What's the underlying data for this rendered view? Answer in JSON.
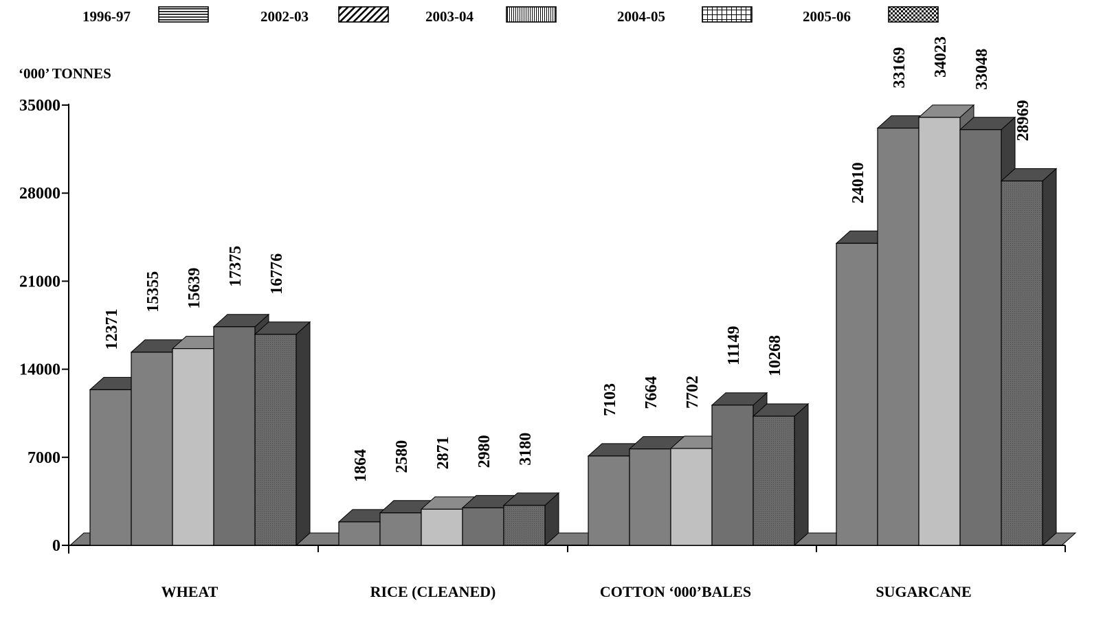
{
  "chart_data": {
    "type": "bar",
    "title": "",
    "ylabel": "‘000’ TONNES",
    "xlabel": "",
    "ylim": [
      0,
      35000
    ],
    "yticks": [
      0,
      7000,
      14000,
      21000,
      28000,
      35000
    ],
    "ytick_labels": [
      "0",
      "7000",
      "14000",
      "21000",
      "28000",
      "35000"
    ],
    "grid": false,
    "legend_position": "top",
    "style": "3d-clustered",
    "categories": [
      "WHEAT",
      "RICE (CLEANED)",
      "COTTON ‘000’BALES",
      "SUGARCANE"
    ],
    "series": [
      {
        "name": "1996-97",
        "values": [
          12371,
          1864,
          7103,
          24010
        ],
        "labels": [
          "12371",
          "1864",
          "7103",
          "24010"
        ],
        "pattern": "horizontal-lines",
        "color": "#808080"
      },
      {
        "name": "2002-03",
        "values": [
          15355,
          2580,
          7664,
          33169
        ],
        "labels": [
          "15355",
          "2580",
          "7664",
          "33169"
        ],
        "pattern": "diagonal-lines",
        "color": "#808080"
      },
      {
        "name": "2003-04",
        "values": [
          15639,
          2871,
          7702,
          34023
        ],
        "labels": [
          "15639",
          "2871",
          "7702",
          "34023"
        ],
        "pattern": "vertical-lines",
        "color": "#c0c0c0"
      },
      {
        "name": "2004-05",
        "values": [
          17375,
          2980,
          11149,
          33048
        ],
        "labels": [
          "17375",
          "2980",
          "11149",
          "33048"
        ],
        "pattern": "grid",
        "color": "#707070"
      },
      {
        "name": "2005-06",
        "values": [
          16776,
          3180,
          10268,
          28969
        ],
        "labels": [
          "16776",
          "3180",
          "10268",
          "28969"
        ],
        "pattern": "checker",
        "color": "#6e6e6e"
      }
    ]
  }
}
